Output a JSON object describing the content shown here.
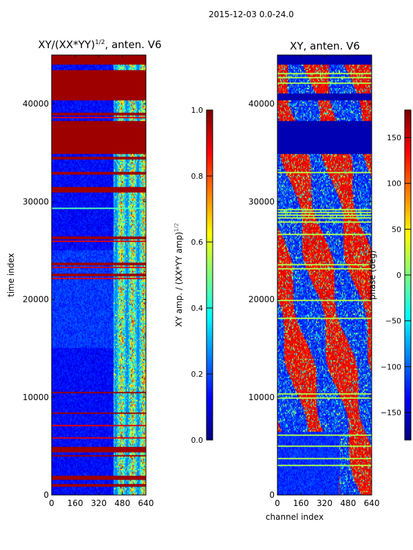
{
  "figure": {
    "suptitle": "2015-12-03 0.0-24.0"
  },
  "chart_data": [
    {
      "type": "heatmap",
      "title": "XY/(XX*YY)^1/2, anten. V6",
      "title_main": "XY/(XX*YY)",
      "title_sup": "1/2",
      "title_tail": ", anten. V6",
      "xlabel": "",
      "ylabel": "time index",
      "xlim": [
        0,
        640
      ],
      "ylim": [
        0,
        45000
      ],
      "xticks": [
        0,
        160,
        320,
        480,
        640
      ],
      "yticks": [
        0,
        10000,
        20000,
        30000,
        40000
      ],
      "colormap": "jet",
      "colorbar": {
        "label_main": "XY amp. / (XX*YY amp)",
        "label_sup": "1/2",
        "range": [
          0.0,
          1.0
        ],
        "ticks": [
          "0.0",
          "0.2",
          "0.4",
          "0.6",
          "0.8",
          "1.0"
        ]
      },
      "active_channels": [
        420,
        640
      ],
      "saturated_rows": [
        [
          800,
          1100
        ],
        [
          1500,
          1900
        ],
        [
          3900,
          4100
        ],
        [
          4400,
          4900
        ],
        [
          8300,
          8500
        ],
        [
          10400,
          10600
        ],
        [
          22400,
          22600
        ],
        [
          23500,
          23700
        ],
        [
          26200,
          26400
        ],
        [
          31000,
          31500
        ],
        [
          32800,
          33100
        ],
        [
          34300,
          34600
        ],
        [
          34900,
          38200
        ],
        [
          38800,
          39100
        ],
        [
          40300,
          43500
        ],
        [
          44000,
          45000
        ]
      ],
      "highlight_rows": [
        [
          29300,
          29400
        ]
      ]
    },
    {
      "type": "heatmap",
      "title": "XY, anten. V6",
      "xlabel": "channel index",
      "ylabel": "",
      "xlim": [
        0,
        640
      ],
      "ylim": [
        0,
        45000
      ],
      "xticks": [
        0,
        160,
        320,
        480,
        640
      ],
      "yticks": [
        0,
        10000,
        20000,
        30000,
        40000
      ],
      "colormap": "jet",
      "colorbar": {
        "label": "phase (deg)",
        "range": [
          -180,
          180
        ],
        "ticks": [
          "−150",
          "−100",
          "−50",
          "0",
          "50",
          "100",
          "150"
        ],
        "tick_values": [
          -150,
          -100,
          -50,
          0,
          50,
          100,
          150
        ]
      },
      "constant_phase_rows": [
        [
          34900,
          38200
        ],
        [
          40300,
          41000
        ],
        [
          44000,
          45000
        ]
      ]
    }
  ]
}
